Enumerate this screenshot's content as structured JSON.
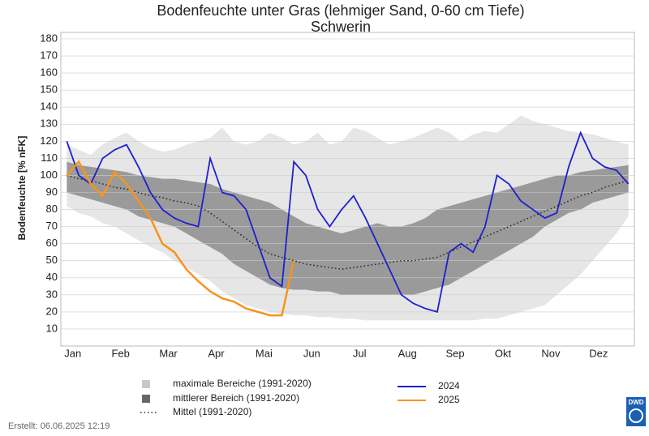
{
  "chart_data": {
    "type": "line",
    "title": "Bodenfeuchte unter Gras (lehmiger Sand, 0-60 cm Tiefe)",
    "subtitle": "Schwerin",
    "y_label": "Bodenfeuchte [% nFK]",
    "categories": [
      null,
      "Jan",
      null,
      null,
      null,
      "Feb",
      null,
      null,
      null,
      "Mar",
      null,
      null,
      null,
      "Apr",
      null,
      null,
      null,
      "Mai",
      null,
      null,
      null,
      "Jun",
      null,
      null,
      null,
      "Jul",
      null,
      null,
      null,
      "Aug",
      null,
      null,
      null,
      "Sep",
      null,
      null,
      null,
      "Okt",
      null,
      null,
      null,
      "Nov",
      null,
      null,
      null,
      "Dez",
      null,
      null
    ],
    "ylim": [
      0,
      180
    ],
    "yticks": [
      10,
      20,
      30,
      40,
      50,
      60,
      70,
      80,
      90,
      100,
      110,
      120,
      130,
      140,
      150,
      160,
      170,
      180
    ],
    "grid": true,
    "bands": [
      {
        "name": "maximale Bereiche (1991-2020)",
        "color": "#e6e6e6",
        "high": [
          118,
          115,
          112,
          118,
          122,
          125,
          120,
          116,
          114,
          115,
          118,
          120,
          122,
          128,
          120,
          118,
          120,
          125,
          122,
          118,
          120,
          125,
          118,
          120,
          128,
          126,
          122,
          118,
          120,
          122,
          125,
          128,
          125,
          120,
          124,
          126,
          125,
          130,
          135,
          132,
          130,
          128,
          126,
          125,
          124,
          122,
          120,
          118
        ],
        "low": [
          82,
          78,
          76,
          72,
          70,
          66,
          62,
          58,
          55,
          50,
          46,
          42,
          38,
          32,
          28,
          24,
          22,
          20,
          19,
          18,
          18,
          17,
          17,
          16,
          16,
          15,
          15,
          15,
          15,
          15,
          15,
          15,
          15,
          15,
          15,
          16,
          16,
          18,
          20,
          22,
          24,
          30,
          36,
          42,
          50,
          58,
          66,
          76
        ]
      },
      {
        "name": "mittlerer Bereich (1991-2020)",
        "color": "#9a9a9a",
        "high": [
          108,
          106,
          105,
          104,
          103,
          102,
          100,
          99,
          98,
          98,
          97,
          96,
          95,
          92,
          90,
          88,
          86,
          84,
          80,
          76,
          72,
          70,
          68,
          66,
          68,
          70,
          72,
          70,
          70,
          72,
          75,
          80,
          82,
          84,
          86,
          88,
          90,
          92,
          94,
          96,
          98,
          100,
          100,
          102,
          103,
          104,
          105,
          106
        ],
        "low": [
          90,
          88,
          86,
          84,
          82,
          80,
          76,
          74,
          72,
          70,
          66,
          62,
          58,
          54,
          48,
          44,
          40,
          36,
          34,
          33,
          33,
          32,
          32,
          30,
          30,
          30,
          30,
          30,
          30,
          30,
          32,
          34,
          36,
          40,
          44,
          48,
          52,
          56,
          60,
          64,
          70,
          74,
          78,
          80,
          84,
          86,
          88,
          90
        ]
      }
    ],
    "mean": {
      "name": "Mittel (1991-2020)",
      "color": "#222222",
      "values": [
        100,
        98,
        97,
        95,
        93,
        92,
        90,
        88,
        87,
        85,
        84,
        82,
        78,
        73,
        68,
        63,
        58,
        54,
        52,
        50,
        48,
        47,
        46,
        45,
        46,
        47,
        48,
        49,
        50,
        50,
        51,
        52,
        55,
        58,
        61,
        64,
        67,
        70,
        73,
        76,
        79,
        82,
        85,
        88,
        90,
        93,
        95,
        97
      ]
    },
    "series": [
      {
        "name": "2024",
        "color": "#1f1fcf",
        "values": [
          120,
          100,
          95,
          110,
          115,
          118,
          105,
          90,
          80,
          75,
          72,
          70,
          110,
          90,
          88,
          80,
          60,
          40,
          35,
          108,
          100,
          80,
          70,
          80,
          88,
          75,
          60,
          45,
          30,
          25,
          22,
          20,
          55,
          60,
          55,
          70,
          100,
          95,
          85,
          80,
          75,
          78,
          105,
          125,
          110,
          105,
          103,
          95
        ]
      },
      {
        "name": "2025",
        "color": "#f7931e",
        "values": [
          100,
          108,
          95,
          88,
          102,
          95,
          85,
          75,
          60,
          55,
          45,
          38,
          32,
          28,
          26,
          22,
          20,
          18,
          18,
          50,
          null,
          null,
          null,
          null,
          null,
          null,
          null,
          null,
          null,
          null,
          null,
          null,
          null,
          null,
          null,
          null,
          null,
          null,
          null,
          null,
          null,
          null,
          null,
          null,
          null,
          null,
          null,
          null
        ]
      }
    ]
  },
  "footer": "Erstellt:  06.06.2025 12:19",
  "logo": "DWD"
}
